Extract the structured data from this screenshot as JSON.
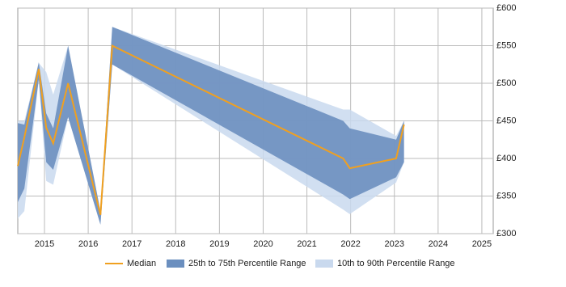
{
  "chart_data": {
    "type": "band-line",
    "x": [
      2014.39,
      2014.54,
      2014.87,
      2015.04,
      2015.2,
      2015.54,
      2016.28,
      2016.55,
      2021.83,
      2021.98,
      2023.04,
      2023.22
    ],
    "series": [
      {
        "name": "Median",
        "color": "#f0a020",
        "values": [
          390,
          428,
          519,
          441,
          420,
          500,
          325,
          550,
          400,
          387,
          400,
          445
        ]
      },
      {
        "name": "25th to 75th Percentile Range",
        "color": "#6b8fbf",
        "low": [
          342,
          360,
          505,
          395,
          385,
          455,
          312,
          525,
          352,
          346,
          375,
          395
        ],
        "high": [
          447,
          445,
          528,
          460,
          440,
          550,
          330,
          575,
          450,
          440,
          425,
          450
        ]
      },
      {
        "name": "10th to 90th Percentile Range",
        "color": "#c9d9ee",
        "low": [
          320,
          330,
          505,
          370,
          365,
          455,
          312,
          525,
          332,
          326,
          368,
          395
        ],
        "high": [
          450,
          450,
          527,
          515,
          485,
          550,
          330,
          575,
          465,
          465,
          430,
          450
        ]
      }
    ],
    "xlim": [
      2014.39,
      2025.26
    ],
    "xticks": [
      2015,
      2016,
      2017,
      2018,
      2019,
      2020,
      2021,
      2022,
      2023,
      2024,
      2025
    ],
    "ylim": [
      300,
      600
    ],
    "yticks": [
      {
        "value": 300,
        "label": "£300"
      },
      {
        "value": 350,
        "label": "£350"
      },
      {
        "value": 400,
        "label": "£400"
      },
      {
        "value": 450,
        "label": "£450"
      },
      {
        "value": 500,
        "label": "£500"
      },
      {
        "value": 550,
        "label": "£550"
      },
      {
        "value": 600,
        "label": "£600"
      }
    ],
    "grid": true,
    "legend": "bottom"
  }
}
